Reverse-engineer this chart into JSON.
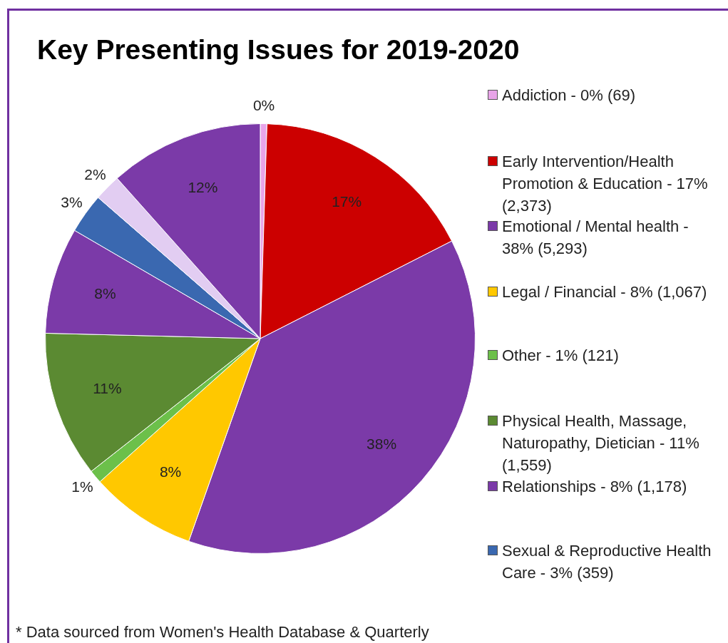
{
  "chart_data": {
    "type": "pie",
    "title": "Key Presenting Issues for 2019-2020",
    "categories": [
      "Addiction - 0% (69)",
      "Early Intervention/Health Promotion & Education - 17% (2,373)",
      "Emotional / Mental health - 38% (5,293)",
      "Legal / Financial - 8% (1,067)",
      "Other - 1% (121)",
      "Physical Health, Massage, Naturopathy, Dietician - 11% (1,559)",
      "Relationships - 8% (1,178)",
      "Sexual & Reproductive Health Care - 3% (359)",
      null,
      null
    ],
    "values": [
      0.5,
      17,
      37.9,
      8,
      1,
      11,
      8,
      3,
      2,
      11.6
    ],
    "colors": [
      "#e8a4e8",
      "#cc0000",
      "#7b3aa8",
      "#ffc800",
      "#6cc04a",
      "#5b8a32",
      "#7b3aa8",
      "#3a68b0",
      "#e2cdf2",
      "#7b3aa8"
    ],
    "value_labels": [
      "0%",
      "17%",
      "38%",
      "8%",
      "1%",
      "11%",
      "8%",
      "3%",
      "2%",
      "12%"
    ],
    "legend": "right",
    "annotations": [
      "* Data sourced from Women's Health Database & Quarterly"
    ]
  }
}
